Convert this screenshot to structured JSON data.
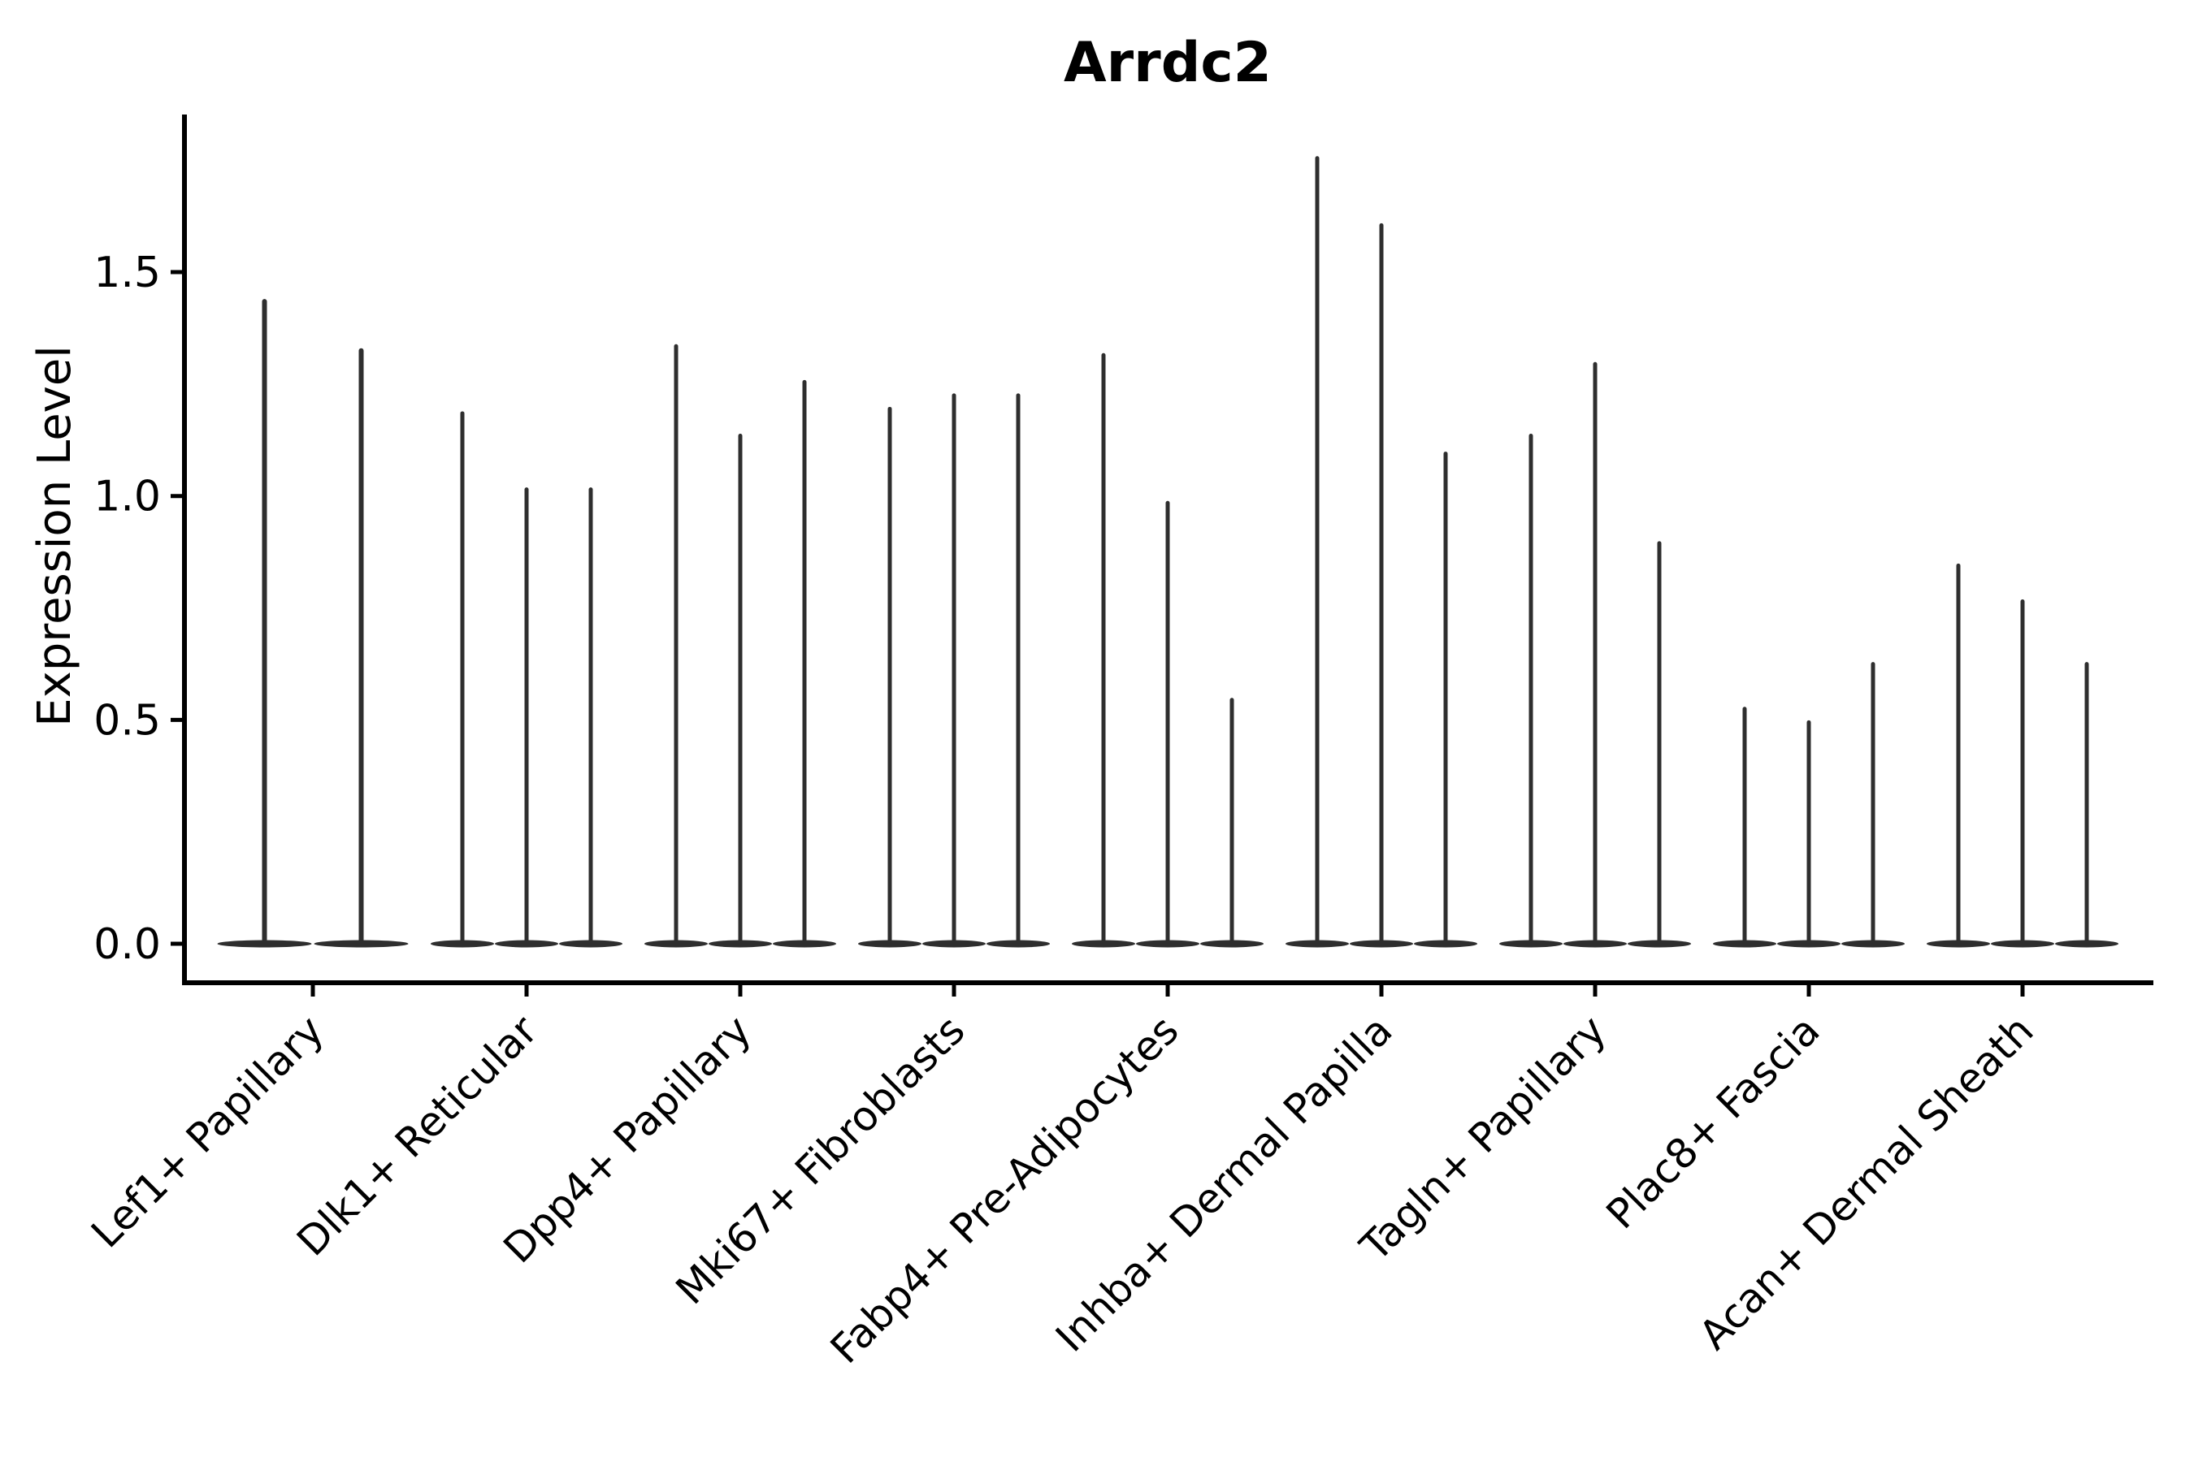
{
  "chart_data": {
    "type": "violin",
    "title": "Arrdc2",
    "ylabel": "Expression Level",
    "xlabel": "",
    "ytick_labels": [
      "0.0",
      "0.5",
      "1.0",
      "1.5"
    ],
    "ytick_values": [
      0.0,
      0.5,
      1.0,
      1.5
    ],
    "ylim": [
      -0.04,
      1.85
    ],
    "grid": false,
    "legend_position": "none",
    "categories": [
      "Lef1+ Papillary",
      "Dlk1+ Reticular",
      "Dpp4+ Papillary",
      "Mki67+ Fibroblasts",
      "Fabp4+ Pre-Adipocytes",
      "Inhba+ Dermal Papilla",
      "Tagln+ Papillary",
      "Plac8+ Fascia",
      "Acan+ Dermal Sheath"
    ],
    "groups": [
      {
        "category": "Lef1+ Papillary",
        "violin_max_values": [
          1.44,
          1.33
        ]
      },
      {
        "category": "Dlk1+ Reticular",
        "violin_max_values": [
          1.19,
          1.02,
          1.02
        ]
      },
      {
        "category": "Dpp4+ Papillary",
        "violin_max_values": [
          1.34,
          1.14,
          1.26
        ]
      },
      {
        "category": "Mki67+ Fibroblasts",
        "violin_max_values": [
          1.2,
          1.23,
          1.23
        ]
      },
      {
        "category": "Fabp4+ Pre-Adipocytes",
        "violin_max_values": [
          1.32,
          0.99,
          0.55
        ]
      },
      {
        "category": "Inhba+ Dermal Papilla",
        "violin_max_values": [
          1.76,
          1.61,
          1.1
        ]
      },
      {
        "category": "Tagln+ Papillary",
        "violin_max_values": [
          1.14,
          1.3,
          0.9
        ]
      },
      {
        "category": "Plac8+ Fascia",
        "violin_max_values": [
          0.53,
          0.5,
          0.63
        ]
      },
      {
        "category": "Acan+ Dermal Sheath",
        "violin_max_values": [
          0.85,
          0.77,
          0.63
        ]
      }
    ],
    "violin_baseline_value": 0.0,
    "violin_shape_note": "Each violin is a thin vertical spike rising from a wide flat density disc at expression 0",
    "colors": {
      "violin": "#2e2e2e",
      "axis": "#000000",
      "text": "#000000",
      "background": "#ffffff"
    }
  }
}
